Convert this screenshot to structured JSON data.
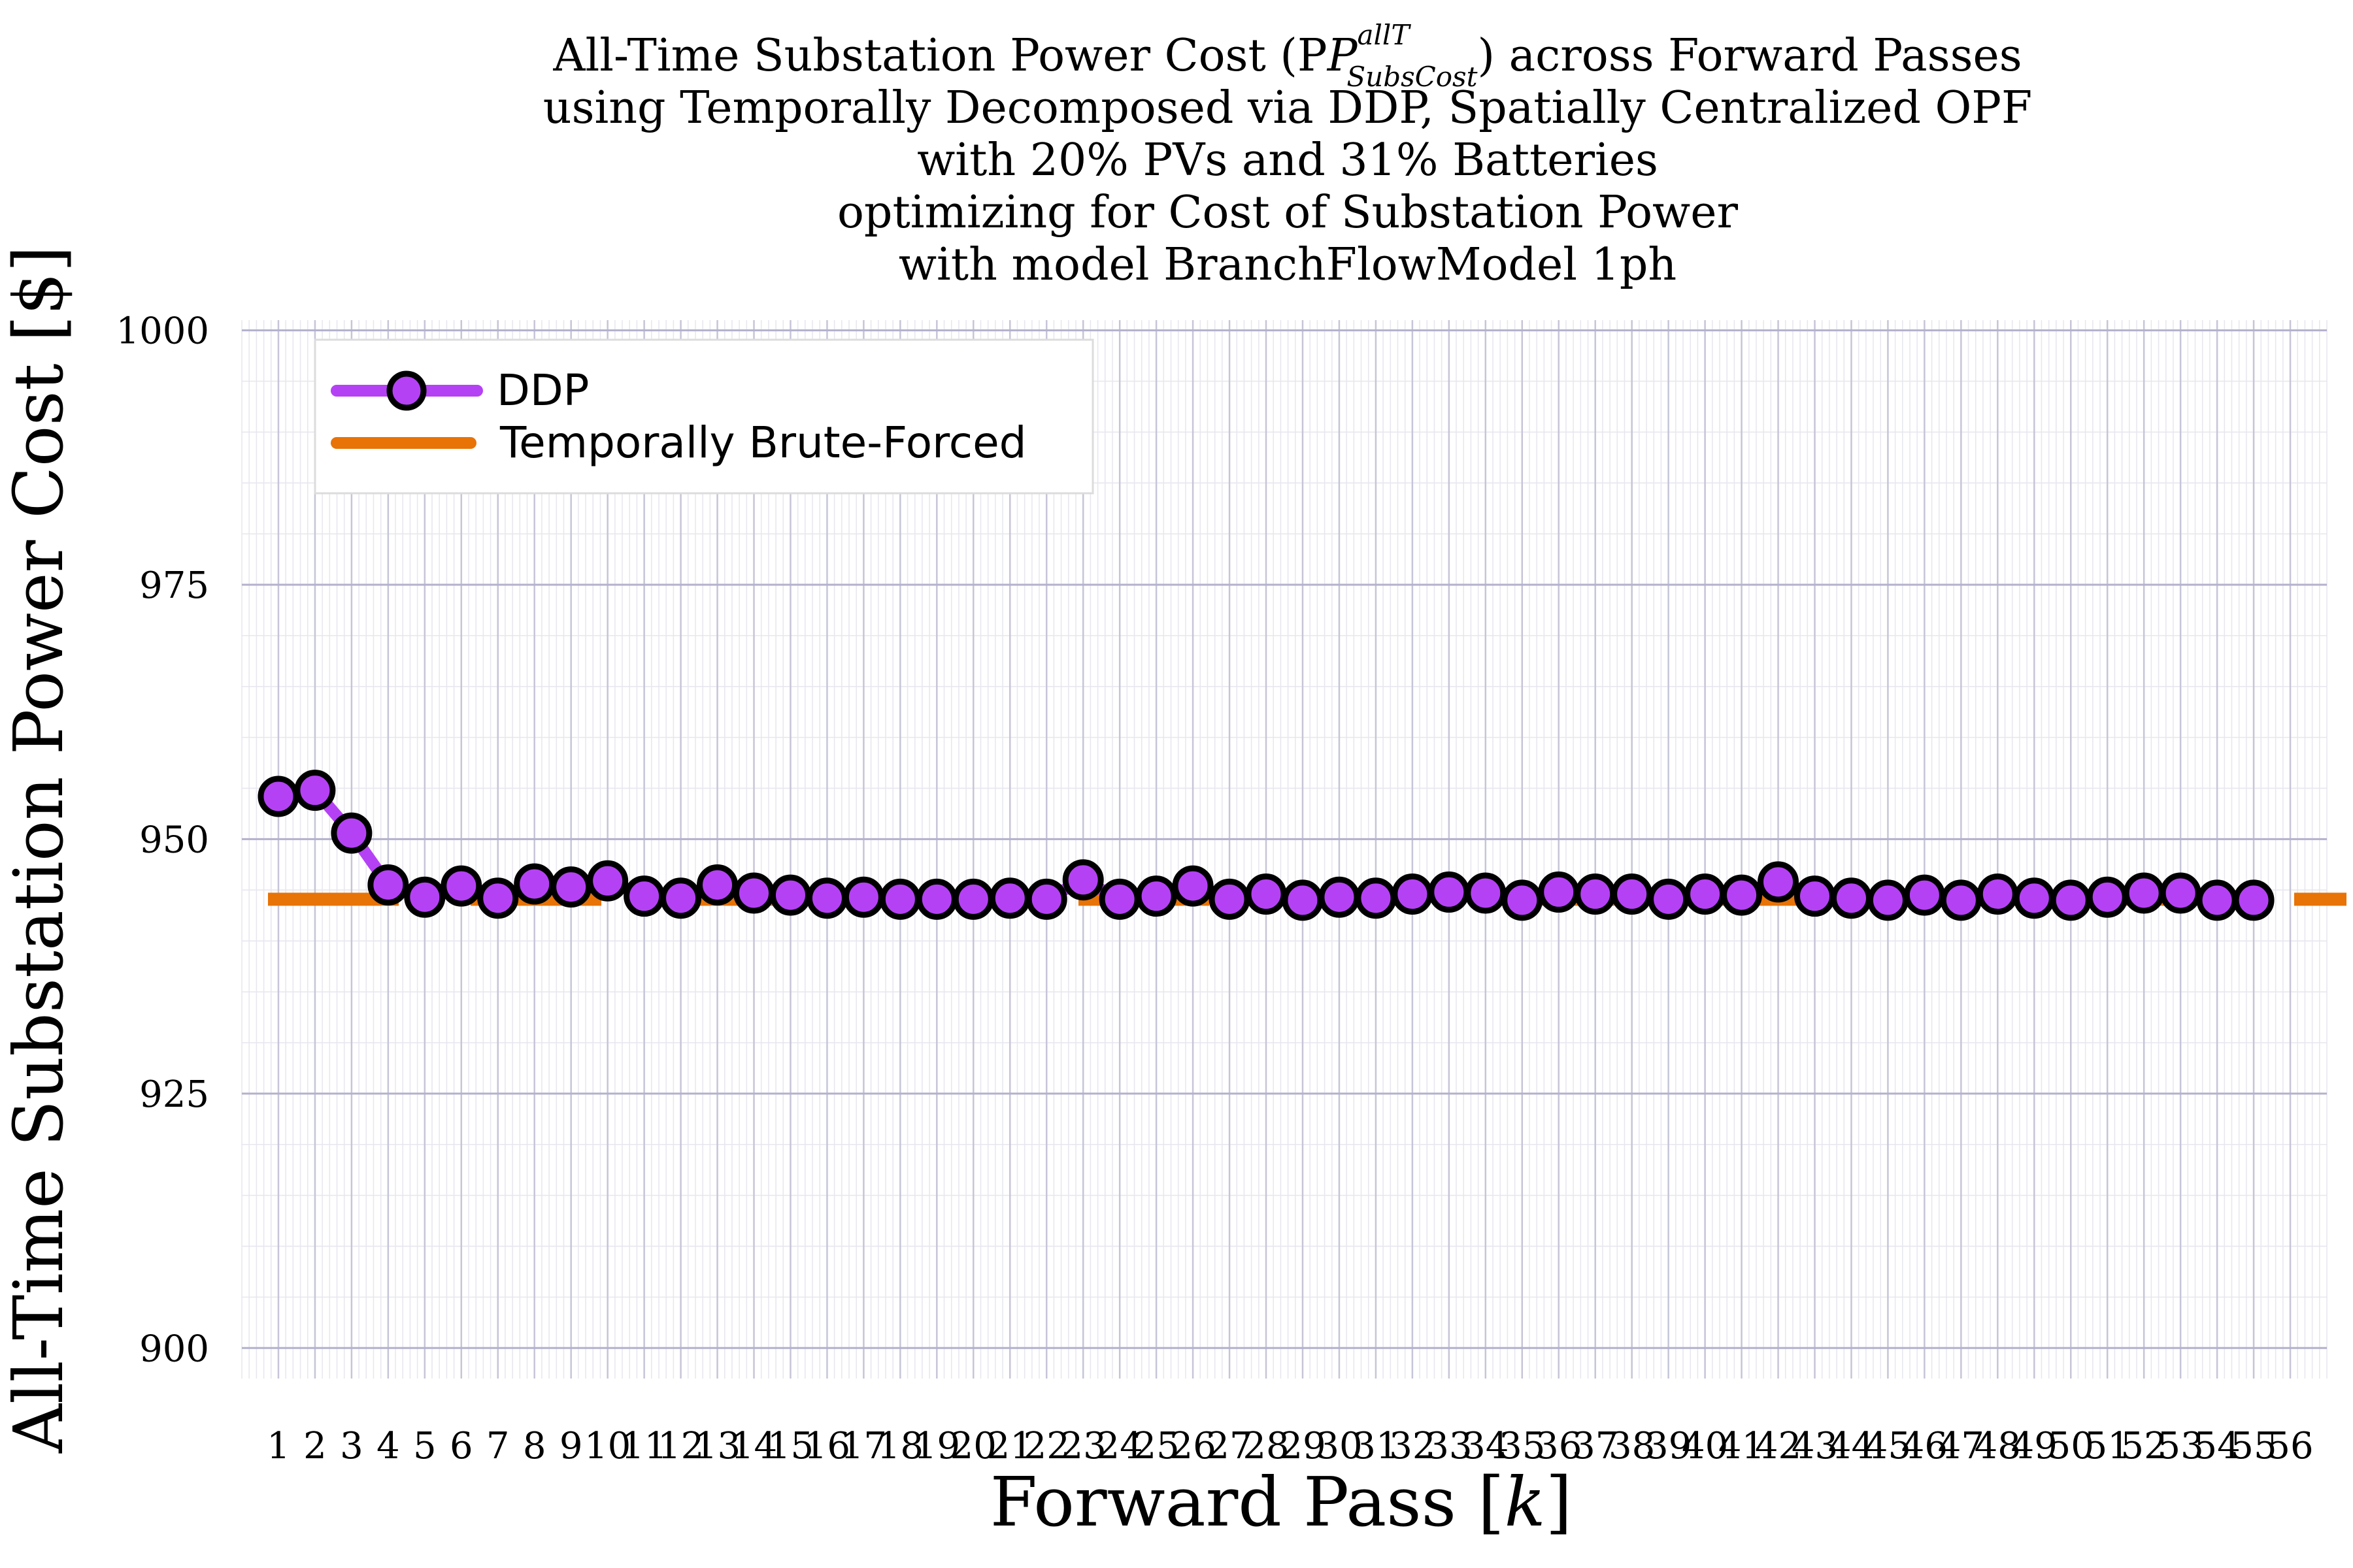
{
  "chart_data": {
    "type": "line",
    "title_lines": [
      "All-Time Substation Power Cost (P",
      "using Temporally Decomposed via DDP, Spatially Centralized OPF",
      "with 20% PVs and 31% Batteries",
      "optimizing for Cost of Substation Power",
      "with model BranchFlowModel 1ph"
    ],
    "title_math": {
      "base": "P",
      "superscript": "allT",
      "subscript": "SubsCost",
      "suffix": ") across Forward Passes"
    },
    "xlabel": "Forward Pass [k]",
    "ylabel": "All-Time Substation Power Cost [$]",
    "xlim": [
      0,
      57
    ],
    "ylim": [
      897,
      1001
    ],
    "x_ticks": [
      1,
      2,
      3,
      4,
      5,
      6,
      7,
      8,
      9,
      10,
      11,
      12,
      13,
      14,
      15,
      16,
      17,
      18,
      19,
      20,
      21,
      22,
      23,
      24,
      25,
      26,
      27,
      28,
      29,
      30,
      31,
      32,
      33,
      34,
      35,
      36,
      37,
      38,
      39,
      40,
      41,
      42,
      43,
      44,
      45,
      46,
      47,
      48,
      49,
      50,
      51,
      52,
      53,
      54,
      55,
      56
    ],
    "y_ticks": [
      900,
      925,
      950,
      975,
      1000
    ],
    "grid": true,
    "legend_position": "top-left",
    "series": [
      {
        "name": "DDP",
        "color": "#b541f5",
        "marker": "circle",
        "x": [
          1,
          2,
          3,
          4,
          5,
          6,
          7,
          8,
          9,
          10,
          11,
          12,
          13,
          14,
          15,
          16,
          17,
          18,
          19,
          20,
          21,
          22,
          23,
          24,
          25,
          26,
          27,
          28,
          29,
          30,
          31,
          32,
          33,
          34,
          35,
          36,
          37,
          38,
          39,
          40,
          41,
          42,
          43,
          44,
          45,
          46,
          47,
          48,
          49,
          50,
          51,
          52,
          53,
          54,
          55
        ],
        "values": [
          954.2,
          954.8,
          950.6,
          945.5,
          944.3,
          945.4,
          944.2,
          945.6,
          945.3,
          945.9,
          944.4,
          944.2,
          945.5,
          944.7,
          944.5,
          944.2,
          944.3,
          944.1,
          944.1,
          944.1,
          944.2,
          944.1,
          946.0,
          944.1,
          944.4,
          945.4,
          944.1,
          944.6,
          944.0,
          944.3,
          944.2,
          944.6,
          944.8,
          944.7,
          944.0,
          944.8,
          944.6,
          944.6,
          944.1,
          944.6,
          944.5,
          945.8,
          944.4,
          944.2,
          944.0,
          944.5,
          944.0,
          944.6,
          944.2,
          944.0,
          944.3,
          944.7,
          944.7,
          944.0,
          944.0
        ]
      },
      {
        "name": "Temporally Brute-Forced",
        "color": "#e87306",
        "style": "dashed",
        "y_constant": 944.1
      }
    ]
  }
}
